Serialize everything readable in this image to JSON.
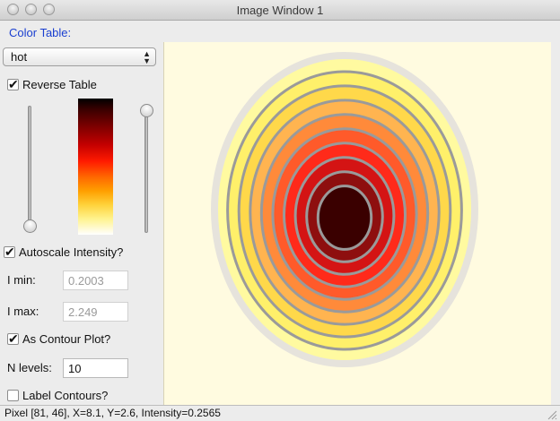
{
  "window": {
    "title": "Image Window 1"
  },
  "controls": {
    "color_table_label": "Color Table:",
    "color_table_value": "hot",
    "reverse_table_label": "Reverse Table",
    "reverse_table_checked": true,
    "autoscale_label": "Autoscale Intensity?",
    "autoscale_checked": true,
    "imin_label": "I min:",
    "imin_value": "0.2003",
    "imax_label": "I max:",
    "imax_value": "2.249",
    "contour_label": "As Contour Plot?",
    "contour_checked": true,
    "nlevels_label": "N levels:",
    "nlevels_value": "10",
    "label_contours_label": "Label Contours?",
    "label_contours_checked": false,
    "low_slider_value": 0.0,
    "high_slider_value": 1.0
  },
  "plot": {
    "background_color": "#fffbe0",
    "contour_levels": 10,
    "level_colors": [
      "#fffaa0",
      "#fff06a",
      "#ffd84a",
      "#ffb450",
      "#ff8a3a",
      "#ff5a2a",
      "#ff2a1a",
      "#d41414",
      "#8e0f0f",
      "#3a0000"
    ],
    "contour_line_color": "#9a9a9a",
    "outer_halo_color": "#e6e3dc"
  },
  "status": {
    "text": "Pixel [81, 46], X=8.1, Y=2.6, Intensity=0.2565"
  }
}
